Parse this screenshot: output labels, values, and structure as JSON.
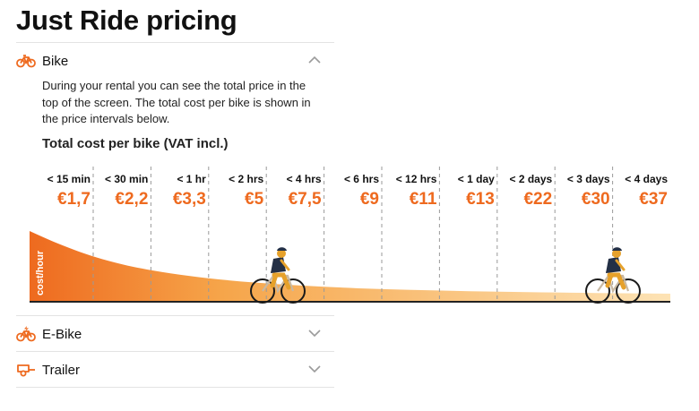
{
  "title": "Just Ride pricing",
  "sections": {
    "bike": {
      "label": "Bike",
      "expanded": true,
      "chevron": "chevron-up-icon",
      "description": "During your rental you can see the total price in the top of the screen. The total cost per bike is shown in the price intervals below.",
      "heading": "Total cost per bike (VAT incl.)"
    },
    "ebike": {
      "label": "E-Bike",
      "expanded": false,
      "chevron": "chevron-down-icon"
    },
    "trailer": {
      "label": "Trailer",
      "expanded": false,
      "chevron": "chevron-down-icon"
    }
  },
  "colors": {
    "accent": "#ee6a1f",
    "curve_start": "#ee6a1f",
    "curve_end": "#fde3b5",
    "divider": "#e3e3e3",
    "chevron": "#9b9b9b"
  },
  "chart_data": {
    "type": "area",
    "ylabel": "cost/hour",
    "intervals": [
      "< 15 min",
      "< 30 min",
      "< 1 hr",
      "< 2 hrs",
      "< 4 hrs",
      "< 6 hrs",
      "< 12 hrs",
      "< 1 day",
      "< 2 days",
      "< 3 days",
      "< 4 days"
    ],
    "prices": [
      "€1,7",
      "€2,2",
      "€3,3",
      "€5",
      "€7,5",
      "€9",
      "€11",
      "€13",
      "€22",
      "€30",
      "€37"
    ],
    "grid": "dashed vertical lines between intervals",
    "illustrations": [
      "cyclist-icon",
      "cyclist-icon"
    ]
  }
}
